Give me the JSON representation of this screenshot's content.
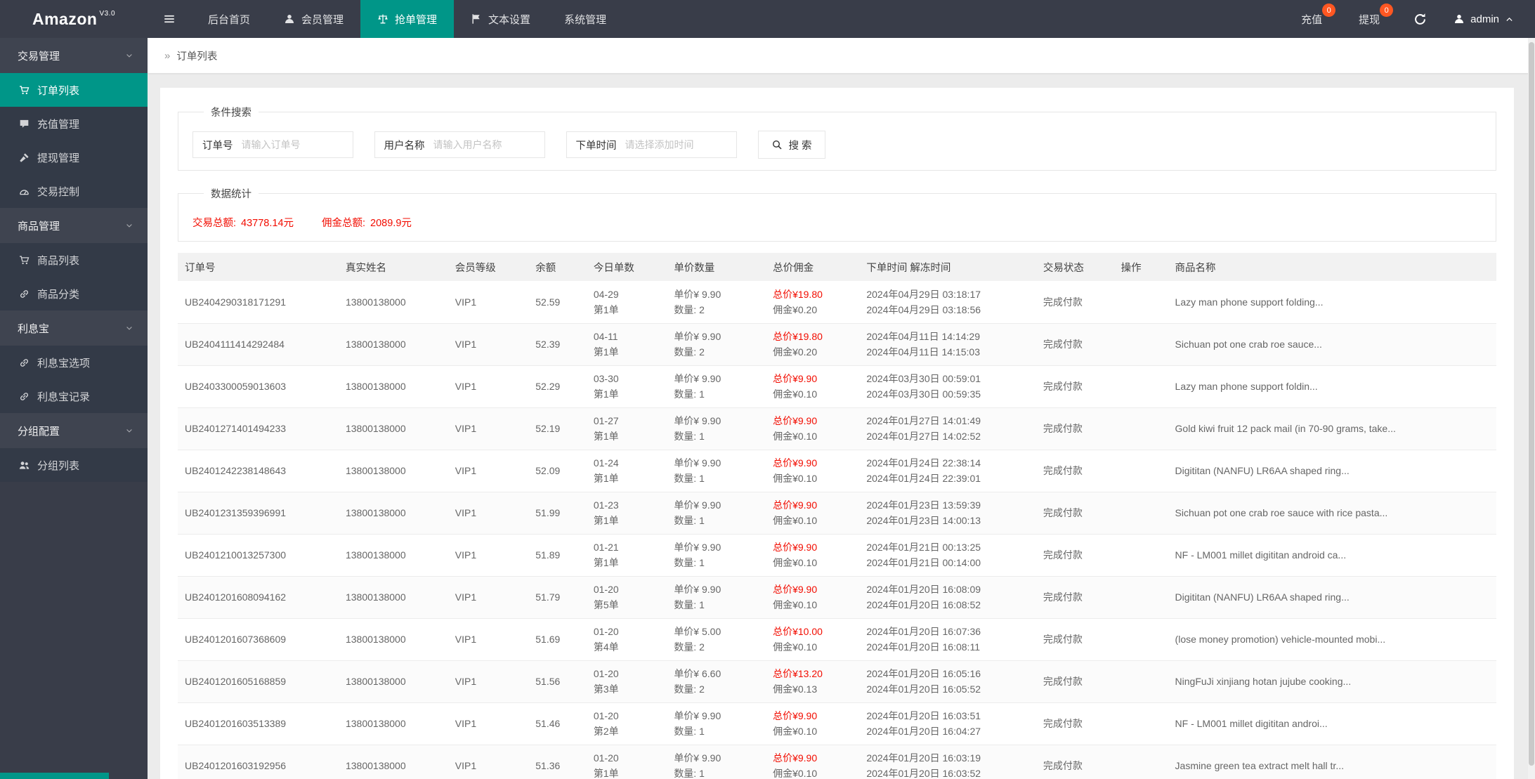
{
  "colors": {
    "accent": "#009688",
    "badge": "#ff5722",
    "red": "#f20c00",
    "topbar_bg": "#393d49"
  },
  "topbar": {
    "logo": "Amazon",
    "logo_version": "V3.0",
    "nav": [
      {
        "label": "后台首页",
        "icon": null,
        "active": false
      },
      {
        "label": "会员管理",
        "icon": "user",
        "active": false
      },
      {
        "label": "抢单管理",
        "icon": "balance",
        "active": true
      },
      {
        "label": "文本设置",
        "icon": "flag",
        "active": false
      },
      {
        "label": "系统管理",
        "icon": null,
        "active": false
      }
    ],
    "actions": [
      {
        "label": "充值",
        "badge": "0"
      },
      {
        "label": "提现",
        "badge": "0"
      }
    ],
    "username": "admin"
  },
  "sidebar": {
    "groups": [
      {
        "title": "交易管理",
        "items": [
          {
            "label": "订单列表",
            "icon": "cart",
            "active": true
          },
          {
            "label": "充值管理",
            "icon": "comment",
            "active": false
          },
          {
            "label": "提现管理",
            "icon": "hammer",
            "active": false
          },
          {
            "label": "交易控制",
            "icon": "gauge",
            "active": false
          }
        ]
      },
      {
        "title": "商品管理",
        "items": [
          {
            "label": "商品列表",
            "icon": "cart",
            "active": false
          },
          {
            "label": "商品分类",
            "icon": "link",
            "active": false
          }
        ]
      },
      {
        "title": "利息宝",
        "items": [
          {
            "label": "利息宝选项",
            "icon": "link",
            "active": false
          },
          {
            "label": "利息宝记录",
            "icon": "link",
            "active": false
          }
        ]
      },
      {
        "title": "分组配置",
        "items": [
          {
            "label": "分组列表",
            "icon": "users",
            "active": false
          }
        ]
      }
    ]
  },
  "breadcrumb": {
    "marker": "»",
    "title": "订单列表"
  },
  "search": {
    "legend": "条件搜索",
    "fields": [
      {
        "label": "订单号",
        "placeholder": "请输入订单号"
      },
      {
        "label": "用户名称",
        "placeholder": "请输入用户名称"
      },
      {
        "label": "下单时间",
        "placeholder": "请选择添加时间"
      }
    ],
    "button_label": "搜 索"
  },
  "stats": {
    "legend": "数据统计",
    "items": [
      {
        "label": "交易总额:",
        "value": "43778.14元"
      },
      {
        "label": "佣金总额:",
        "value": "2089.9元"
      }
    ]
  },
  "table": {
    "headers": [
      "订单号",
      "真实姓名",
      "会员等级",
      "余额",
      "今日单数",
      "单价数量",
      "总价佣金",
      "下单时间 解冻时间",
      "交易状态",
      "操作",
      "商品名称"
    ],
    "rows": [
      {
        "order_no": "UB2404290318171291",
        "real_name": "13800138000",
        "level": "VIP1",
        "balance": "52.59",
        "day": "04-29",
        "day_seq": "第1单",
        "unit_price": "单价¥ 9.90",
        "quantity": "数量: 2",
        "total_price": "总价¥19.80",
        "commission": "佣金¥0.20",
        "order_time": "2024年04月29日 03:18:17",
        "unfreeze_time": "2024年04月29日 03:18:56",
        "status": "完成付款",
        "product": "Lazy man phone support folding..."
      },
      {
        "order_no": "UB2404111414292484",
        "real_name": "13800138000",
        "level": "VIP1",
        "balance": "52.39",
        "day": "04-11",
        "day_seq": "第1单",
        "unit_price": "单价¥ 9.90",
        "quantity": "数量: 2",
        "total_price": "总价¥19.80",
        "commission": "佣金¥0.20",
        "order_time": "2024年04月11日 14:14:29",
        "unfreeze_time": "2024年04月11日 14:15:03",
        "status": "完成付款",
        "product": "Sichuan pot one crab roe sauce..."
      },
      {
        "order_no": "UB2403300059013603",
        "real_name": "13800138000",
        "level": "VIP1",
        "balance": "52.29",
        "day": "03-30",
        "day_seq": "第1单",
        "unit_price": "单价¥ 9.90",
        "quantity": "数量: 1",
        "total_price": "总价¥9.90",
        "commission": "佣金¥0.10",
        "order_time": "2024年03月30日 00:59:01",
        "unfreeze_time": "2024年03月30日 00:59:35",
        "status": "完成付款",
        "product": "Lazy man phone support foldin..."
      },
      {
        "order_no": "UB2401271401494233",
        "real_name": "13800138000",
        "level": "VIP1",
        "balance": "52.19",
        "day": "01-27",
        "day_seq": "第1单",
        "unit_price": "单价¥ 9.90",
        "quantity": "数量: 1",
        "total_price": "总价¥9.90",
        "commission": "佣金¥0.10",
        "order_time": "2024年01月27日 14:01:49",
        "unfreeze_time": "2024年01月27日 14:02:52",
        "status": "完成付款",
        "product": "Gold kiwi fruit 12 pack mail (in 70-90 grams, take..."
      },
      {
        "order_no": "UB2401242238148643",
        "real_name": "13800138000",
        "level": "VIP1",
        "balance": "52.09",
        "day": "01-24",
        "day_seq": "第1单",
        "unit_price": "单价¥ 9.90",
        "quantity": "数量: 1",
        "total_price": "总价¥9.90",
        "commission": "佣金¥0.10",
        "order_time": "2024年01月24日 22:38:14",
        "unfreeze_time": "2024年01月24日 22:39:01",
        "status": "完成付款",
        "product": "Digititan (NANFU) LR6AA shaped ring..."
      },
      {
        "order_no": "UB2401231359396991",
        "real_name": "13800138000",
        "level": "VIP1",
        "balance": "51.99",
        "day": "01-23",
        "day_seq": "第1单",
        "unit_price": "单价¥ 9.90",
        "quantity": "数量: 1",
        "total_price": "总价¥9.90",
        "commission": "佣金¥0.10",
        "order_time": "2024年01月23日 13:59:39",
        "unfreeze_time": "2024年01月23日 14:00:13",
        "status": "完成付款",
        "product": "Sichuan pot one crab roe sauce with rice pasta..."
      },
      {
        "order_no": "UB2401210013257300",
        "real_name": "13800138000",
        "level": "VIP1",
        "balance": "51.89",
        "day": "01-21",
        "day_seq": "第1单",
        "unit_price": "单价¥ 9.90",
        "quantity": "数量: 1",
        "total_price": "总价¥9.90",
        "commission": "佣金¥0.10",
        "order_time": "2024年01月21日 00:13:25",
        "unfreeze_time": "2024年01月21日 00:14:00",
        "status": "完成付款",
        "product": "NF - LM001 millet digititan android ca..."
      },
      {
        "order_no": "UB2401201608094162",
        "real_name": "13800138000",
        "level": "VIP1",
        "balance": "51.79",
        "day": "01-20",
        "day_seq": "第5单",
        "unit_price": "单价¥ 9.90",
        "quantity": "数量: 1",
        "total_price": "总价¥9.90",
        "commission": "佣金¥0.10",
        "order_time": "2024年01月20日 16:08:09",
        "unfreeze_time": "2024年01月20日 16:08:52",
        "status": "完成付款",
        "product": "Digititan (NANFU) LR6AA shaped ring..."
      },
      {
        "order_no": "UB2401201607368609",
        "real_name": "13800138000",
        "level": "VIP1",
        "balance": "51.69",
        "day": "01-20",
        "day_seq": "第4单",
        "unit_price": "单价¥ 5.00",
        "quantity": "数量: 2",
        "total_price": "总价¥10.00",
        "commission": "佣金¥0.10",
        "order_time": "2024年01月20日 16:07:36",
        "unfreeze_time": "2024年01月20日 16:08:11",
        "status": "完成付款",
        "product": "(lose money promotion) vehicle-mounted mobi..."
      },
      {
        "order_no": "UB2401201605168859",
        "real_name": "13800138000",
        "level": "VIP1",
        "balance": "51.56",
        "day": "01-20",
        "day_seq": "第3单",
        "unit_price": "单价¥ 6.60",
        "quantity": "数量: 2",
        "total_price": "总价¥13.20",
        "commission": "佣金¥0.13",
        "order_time": "2024年01月20日 16:05:16",
        "unfreeze_time": "2024年01月20日 16:05:52",
        "status": "完成付款",
        "product": "NingFuJi xinjiang hotan jujube cooking..."
      },
      {
        "order_no": "UB2401201603513389",
        "real_name": "13800138000",
        "level": "VIP1",
        "balance": "51.46",
        "day": "01-20",
        "day_seq": "第2单",
        "unit_price": "单价¥ 9.90",
        "quantity": "数量: 1",
        "total_price": "总价¥9.90",
        "commission": "佣金¥0.10",
        "order_time": "2024年01月20日 16:03:51",
        "unfreeze_time": "2024年01月20日 16:04:27",
        "status": "完成付款",
        "product": "NF - LM001 millet digititan androi..."
      },
      {
        "order_no": "UB2401201603192956",
        "real_name": "13800138000",
        "level": "VIP1",
        "balance": "51.36",
        "day": "01-20",
        "day_seq": "第1单",
        "unit_price": "单价¥ 9.90",
        "quantity": "数量: 1",
        "total_price": "总价¥9.90",
        "commission": "佣金¥0.10",
        "order_time": "2024年01月20日 16:03:19",
        "unfreeze_time": "2024年01月20日 16:03:52",
        "status": "完成付款",
        "product": "Jasmine green tea extract melt hall tr..."
      }
    ]
  }
}
